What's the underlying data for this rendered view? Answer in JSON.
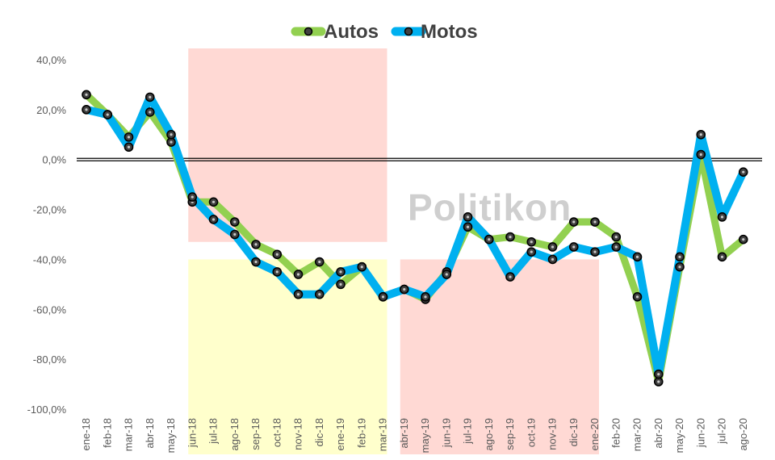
{
  "chart_data": {
    "type": "line",
    "title": "",
    "xlabel": "",
    "ylabel": "",
    "ylim": [
      -100,
      40
    ],
    "y_ticks": [
      "40,0%",
      "20,0%",
      "0,0%",
      "-20,0%",
      "-40,0%",
      "-60,0%",
      "-80,0%",
      "-100,0%"
    ],
    "y_tick_values": [
      40,
      20,
      0,
      -20,
      -40,
      -60,
      -80,
      -100
    ],
    "legend_position": "top-center",
    "categories": [
      "ene-18",
      "feb-18",
      "mar-18",
      "abr-18",
      "may-18",
      "jun-18",
      "jul-18",
      "ago-18",
      "sep-18",
      "oct-18",
      "nov-18",
      "dic-18",
      "ene-19",
      "feb-19",
      "mar-19",
      "abr-19",
      "may-19",
      "jun-19",
      "jul-19",
      "ago-19",
      "sep-19",
      "oct-19",
      "nov-19",
      "dic-19",
      "ene-20",
      "feb-20",
      "mar-20",
      "abr-20",
      "may-20",
      "jun-20",
      "jul-20",
      "ago-20"
    ],
    "series": [
      {
        "name": "Autos",
        "color": "#92d050",
        "values": [
          26,
          18,
          9,
          19,
          7,
          -17,
          -17,
          -25,
          -34,
          -38,
          -46,
          -41,
          -50,
          -43,
          -55,
          -52,
          -56,
          -45,
          -27,
          -32,
          -31,
          -33,
          -35,
          -25,
          -25,
          -31,
          -55,
          -89,
          -43,
          2,
          -39,
          -32
        ]
      },
      {
        "name": "Motos",
        "color": "#00b0f0",
        "values": [
          20,
          18,
          5,
          25,
          10,
          -15,
          -24,
          -30,
          -41,
          -45,
          -54,
          -54,
          -45,
          -43,
          -55,
          -52,
          -55,
          -46,
          -23,
          -32,
          -47,
          -37,
          -40,
          -35,
          -37,
          -35,
          -39,
          -86,
          -39,
          10,
          -23,
          -5
        ]
      }
    ],
    "shaded_regions": [
      {
        "from": "jun-18",
        "to": "mar-19",
        "y_from": 45,
        "y_to": -33,
        "color": "#ffd9d4"
      },
      {
        "from": "jun-18",
        "to": "mar-19",
        "y_from": -40,
        "y_to": -120,
        "color": "#ffffcc"
      },
      {
        "from": "abr-19",
        "to": "ene-20",
        "y_from": -40,
        "y_to": -120,
        "color": "#ffd9d4"
      }
    ],
    "watermark": "Politikon"
  }
}
